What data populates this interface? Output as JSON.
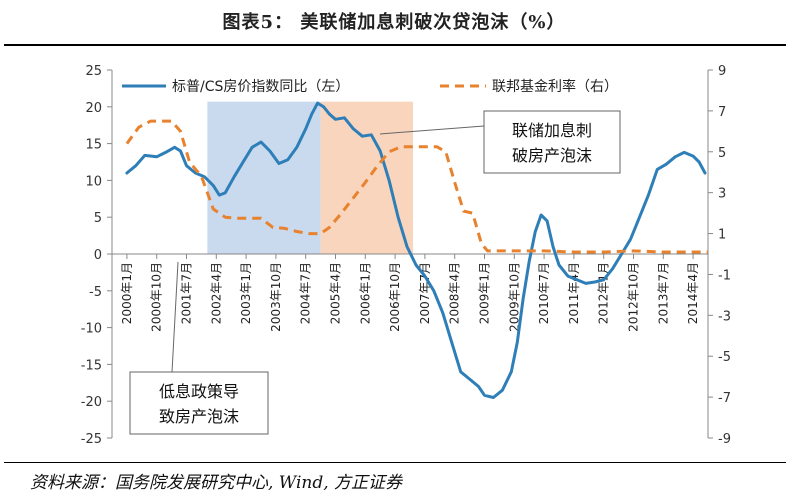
{
  "title": "图表5：  美联储加息刺破次贷泡沫（%）",
  "source": "资料来源：国务院发展研究中心, Wind, 方正证券",
  "chart_data": {
    "type": "line",
    "x_labels": [
      "2000年1月",
      "2000年10月",
      "2001年7月",
      "2002年4月",
      "2003年1月",
      "2003年10月",
      "2004年7月",
      "2005年4月",
      "2006年1月",
      "2006年10月",
      "2007年7月",
      "2008年4月",
      "2009年1月",
      "2009年10月",
      "2010年7月",
      "2011年4月",
      "2012年1月",
      "2012年10月",
      "2013年7月",
      "2014年4月"
    ],
    "y_left": {
      "min": -25,
      "max": 25,
      "ticks": [
        25,
        20,
        15,
        10,
        5,
        0,
        -5,
        -10,
        -15,
        -20,
        -25
      ]
    },
    "y_right": {
      "min": -9,
      "max": 9,
      "ticks": [
        9,
        7,
        5,
        3,
        1,
        -1,
        -3,
        -5,
        -7,
        -9
      ]
    },
    "series": [
      {
        "name": "标普/CS房价指数同比（左）",
        "axis": "left",
        "color": "#2E7EB8",
        "style": "solid",
        "points": [
          [
            0,
            11
          ],
          [
            0.3,
            12
          ],
          [
            0.6,
            13.4
          ],
          [
            1,
            13.2
          ],
          [
            1.3,
            13.8
          ],
          [
            1.6,
            14.5
          ],
          [
            1.8,
            14
          ],
          [
            2,
            12
          ],
          [
            2.3,
            11
          ],
          [
            2.6,
            10.5
          ],
          [
            2.9,
            9.3
          ],
          [
            3.1,
            8
          ],
          [
            3.3,
            8.3
          ],
          [
            3.6,
            10.5
          ],
          [
            3.9,
            12.5
          ],
          [
            4.2,
            14.5
          ],
          [
            4.5,
            15.2
          ],
          [
            4.8,
            14
          ],
          [
            5.1,
            12.3
          ],
          [
            5.4,
            12.8
          ],
          [
            5.7,
            14.5
          ],
          [
            6,
            17
          ],
          [
            6.2,
            19
          ],
          [
            6.4,
            20.5
          ],
          [
            6.6,
            20
          ],
          [
            6.8,
            19
          ],
          [
            7,
            18.3
          ],
          [
            7.3,
            18.5
          ],
          [
            7.6,
            17
          ],
          [
            7.9,
            16
          ],
          [
            8.2,
            16.2
          ],
          [
            8.5,
            14
          ],
          [
            8.8,
            10
          ],
          [
            9.1,
            5
          ],
          [
            9.4,
            1
          ],
          [
            9.7,
            -1.5
          ],
          [
            10,
            -3
          ],
          [
            10.3,
            -5
          ],
          [
            10.6,
            -8
          ],
          [
            10.9,
            -12
          ],
          [
            11.2,
            -16
          ],
          [
            11.5,
            -17
          ],
          [
            11.8,
            -18
          ],
          [
            12,
            -19.2
          ],
          [
            12.3,
            -19.5
          ],
          [
            12.6,
            -18.5
          ],
          [
            12.9,
            -16
          ],
          [
            13.1,
            -12
          ],
          [
            13.3,
            -6
          ],
          [
            13.5,
            -1
          ],
          [
            13.7,
            3
          ],
          [
            13.9,
            5.3
          ],
          [
            14.1,
            4.5
          ],
          [
            14.3,
            1
          ],
          [
            14.5,
            -1.5
          ],
          [
            14.8,
            -3
          ],
          [
            15.1,
            -3.5
          ],
          [
            15.4,
            -4
          ],
          [
            15.7,
            -3.8
          ],
          [
            16,
            -3.5
          ],
          [
            16.3,
            -2
          ],
          [
            16.6,
            0
          ],
          [
            16.9,
            2
          ],
          [
            17.2,
            5
          ],
          [
            17.5,
            8
          ],
          [
            17.8,
            11.5
          ],
          [
            18.1,
            12.2
          ],
          [
            18.4,
            13.2
          ],
          [
            18.7,
            13.8
          ],
          [
            19,
            13.3
          ],
          [
            19.2,
            12.5
          ],
          [
            19.4,
            11
          ]
        ]
      },
      {
        "name": "联邦基金利率（右）",
        "axis": "right",
        "color": "#E8822E",
        "style": "dashed",
        "points": [
          [
            0,
            5.4
          ],
          [
            0.4,
            6.2
          ],
          [
            0.8,
            6.5
          ],
          [
            1.2,
            6.5
          ],
          [
            1.5,
            6.5
          ],
          [
            1.8,
            6
          ],
          [
            2.1,
            4.5
          ],
          [
            2.5,
            3.8
          ],
          [
            2.9,
            2.2
          ],
          [
            3.3,
            1.8
          ],
          [
            3.7,
            1.75
          ],
          [
            4.1,
            1.75
          ],
          [
            4.5,
            1.75
          ],
          [
            4.9,
            1.3
          ],
          [
            5.3,
            1.25
          ],
          [
            5.7,
            1.1
          ],
          [
            6.1,
            1
          ],
          [
            6.5,
            1
          ],
          [
            6.8,
            1.3
          ],
          [
            7.2,
            2
          ],
          [
            7.6,
            2.75
          ],
          [
            8,
            3.5
          ],
          [
            8.4,
            4.3
          ],
          [
            8.8,
            5
          ],
          [
            9.2,
            5.25
          ],
          [
            9.6,
            5.25
          ],
          [
            10,
            5.25
          ],
          [
            10.4,
            5.25
          ],
          [
            10.7,
            5
          ],
          [
            11,
            3.5
          ],
          [
            11.3,
            2.1
          ],
          [
            11.6,
            2
          ],
          [
            11.9,
            0.5
          ],
          [
            12.1,
            0.15
          ],
          [
            13,
            0.15
          ],
          [
            14,
            0.15
          ],
          [
            15,
            0.1
          ],
          [
            16,
            0.1
          ],
          [
            17,
            0.15
          ],
          [
            18,
            0.1
          ],
          [
            19,
            0.1
          ],
          [
            19.5,
            0.1
          ]
        ]
      }
    ],
    "shaded_regions": [
      {
        "x_start": 2.7,
        "x_end": 6.5,
        "color": "#C9D9EE",
        "label": "低息政策导致房产泡沫"
      },
      {
        "x_start": 6.5,
        "x_end": 9.6,
        "color": "#F8D5BC",
        "label": "联储加息刺破房产泡沫"
      }
    ],
    "annotations": [
      {
        "lines": [
          "联储加息刺",
          "破房产泡沫"
        ],
        "target_x": 8.5
      },
      {
        "lines": [
          "低息政策导",
          "致房产泡沫"
        ],
        "target_x": 3.3
      }
    ],
    "legend_placement": "top"
  }
}
